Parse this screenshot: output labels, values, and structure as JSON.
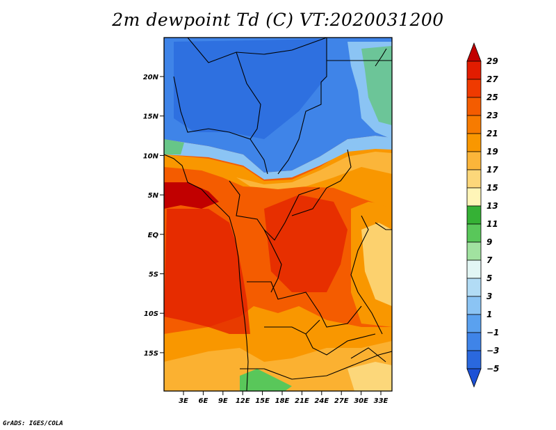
{
  "title": "2m dewpoint Td (C) VT:2020031200",
  "credit": "GrADS: IGES/COLA",
  "lat_labels": [
    "20N",
    "15N",
    "10N",
    "5N",
    "EQ",
    "5S",
    "10S",
    "15S"
  ],
  "lon_labels": [
    "3E",
    "6E",
    "9E",
    "12E",
    "15E",
    "18E",
    "21E",
    "24E",
    "27E",
    "30E",
    "33E"
  ],
  "colorbar": {
    "labels": [
      "29",
      "27",
      "25",
      "23",
      "21",
      "19",
      "17",
      "15",
      "13",
      "11",
      "9",
      "7",
      "5",
      "3",
      "1",
      "−1",
      "−3",
      "−5"
    ],
    "colors": [
      "#c10000",
      "#e11c00",
      "#ef3a00",
      "#f45c00",
      "#f77b00",
      "#f99700",
      "#fbb53a",
      "#fcd77a",
      "#fff5b8",
      "#35b135",
      "#59c75a",
      "#a1e2a0",
      "#e2f6f4",
      "#b2dcf5",
      "#8bc4f4",
      "#5aa1ef",
      "#3f84e8",
      "#2a68de",
      "#1d51d6"
    ]
  },
  "map_colors": {
    "very_dry": "#2c6cde",
    "dry": "#3f84e8",
    "transition": "#8bc4f4",
    "moist_green": "#59c75a",
    "semi_moist": "#fcd77a",
    "moist": "#f99700",
    "humid": "#f45c00",
    "very_humid": "#e11c00"
  }
}
